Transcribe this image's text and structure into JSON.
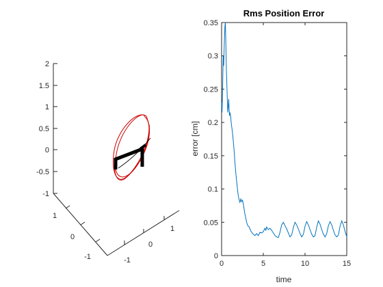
{
  "chart_data": [
    {
      "type": "line3d",
      "title": "",
      "xlabel": "",
      "ylabel": "",
      "zlabel": "",
      "x_ticks": [
        "-1",
        "0",
        "1"
      ],
      "y_ticks": [
        "-1",
        "0",
        "1"
      ],
      "z_ticks": [
        "-1",
        "-0.5",
        "0",
        "0.5",
        "1",
        "1.5",
        "2"
      ],
      "xlim": [
        -1,
        1
      ],
      "ylim": [
        -1,
        1
      ],
      "zlim": [
        -1,
        2
      ],
      "grid": false,
      "colors": {
        "trajectory": "#cc0000",
        "robot_arm": "#000000",
        "path": "#000000",
        "axes": "#262626"
      }
    },
    {
      "type": "line",
      "title": "Rms Position Error",
      "xlabel": "time",
      "ylabel": "error [cm]",
      "xlim": [
        0,
        15
      ],
      "ylim": [
        0,
        0.35
      ],
      "x_ticks": [
        "0",
        "5",
        "10",
        "15"
      ],
      "y_ticks": [
        "0",
        "0.05",
        "0.1",
        "0.15",
        "0.2",
        "0.25",
        "0.3",
        "0.35"
      ],
      "grid": false,
      "box": true,
      "series": [
        {
          "color": "#0072bd",
          "x": [
            0,
            0.05,
            0.1,
            0.15,
            0.2,
            0.25,
            0.3,
            0.35,
            0.4,
            0.45,
            0.5,
            0.55,
            0.6,
            0.65,
            0.7,
            0.75,
            0.8,
            0.85,
            0.9,
            0.95,
            1.0,
            1.05,
            1.1,
            1.15,
            1.2,
            1.3,
            1.4,
            1.5,
            1.6,
            1.7,
            1.8,
            1.9,
            2.0,
            2.1,
            2.2,
            2.3,
            2.4,
            2.5,
            2.6,
            2.7,
            2.8,
            2.9,
            3.0,
            3.1,
            3.2,
            3.3,
            3.4,
            3.5,
            3.6,
            3.8,
            4.0,
            4.2,
            4.4,
            4.6,
            4.8,
            5.0,
            5.2,
            5.3,
            5.4,
            5.6,
            5.8,
            6.0,
            6.2,
            6.4,
            6.6,
            6.8,
            7.0,
            7.2,
            7.4,
            7.6,
            7.8,
            8.0,
            8.2,
            8.4,
            8.6,
            8.8,
            9.0,
            9.2,
            9.4,
            9.6,
            9.8,
            10.0,
            10.2,
            10.4,
            10.6,
            10.8,
            11.0,
            11.2,
            11.4,
            11.6,
            11.8,
            12.0,
            12.2,
            12.4,
            12.6,
            12.8,
            13.0,
            13.2,
            13.4,
            13.6,
            13.8,
            14.0,
            14.2,
            14.4,
            14.6,
            14.8,
            15.0
          ],
          "y": [
            0.23,
            0.215,
            0.235,
            0.27,
            0.3,
            0.285,
            0.31,
            0.33,
            0.345,
            0.35,
            0.325,
            0.295,
            0.27,
            0.25,
            0.23,
            0.215,
            0.225,
            0.235,
            0.22,
            0.21,
            0.215,
            0.212,
            0.208,
            0.2,
            0.195,
            0.185,
            0.172,
            0.158,
            0.14,
            0.125,
            0.112,
            0.1,
            0.09,
            0.084,
            0.08,
            0.085,
            0.081,
            0.083,
            0.078,
            0.07,
            0.062,
            0.056,
            0.05,
            0.046,
            0.044,
            0.043,
            0.04,
            0.037,
            0.035,
            0.032,
            0.03,
            0.033,
            0.03,
            0.035,
            0.034,
            0.036,
            0.041,
            0.038,
            0.043,
            0.039,
            0.041,
            0.038,
            0.034,
            0.03,
            0.028,
            0.027,
            0.035,
            0.046,
            0.05,
            0.045,
            0.04,
            0.034,
            0.028,
            0.031,
            0.042,
            0.05,
            0.046,
            0.04,
            0.033,
            0.028,
            0.032,
            0.044,
            0.051,
            0.046,
            0.039,
            0.032,
            0.028,
            0.03,
            0.043,
            0.052,
            0.047,
            0.039,
            0.032,
            0.028,
            0.033,
            0.045,
            0.051,
            0.046,
            0.038,
            0.031,
            0.028,
            0.031,
            0.044,
            0.052,
            0.046,
            0.036,
            0.028
          ]
        }
      ]
    }
  ]
}
